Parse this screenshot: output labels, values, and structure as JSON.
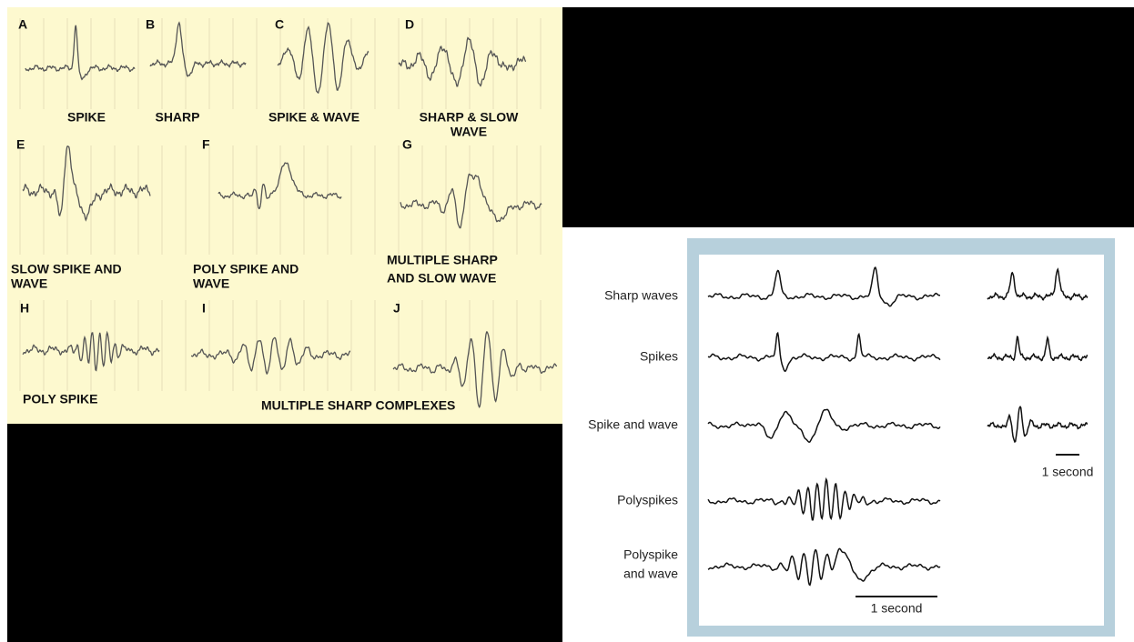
{
  "left_panel": {
    "panels": [
      {
        "letter": "A",
        "label_lines": [
          "SPIKE"
        ]
      },
      {
        "letter": "B",
        "label_lines": [
          "SHARP"
        ]
      },
      {
        "letter": "C",
        "label_lines": [
          "SPIKE & WAVE"
        ]
      },
      {
        "letter": "D",
        "label_lines": [
          "SHARP & SLOW",
          "WAVE"
        ]
      },
      {
        "letter": "E",
        "label_lines": [
          "SLOW SPIKE AND",
          "WAVE"
        ]
      },
      {
        "letter": "F",
        "label_lines": [
          "POLY SPIKE AND",
          "WAVE"
        ]
      },
      {
        "letter": "G",
        "label_lines": [
          "MULTIPLE  SHARP",
          "AND SLOW WAVE"
        ]
      },
      {
        "letter": "H",
        "label_lines": [
          "POLY SPIKE"
        ]
      },
      {
        "letter": "I",
        "label_lines": []
      },
      {
        "letter": "J",
        "label_lines": []
      }
    ],
    "shared_label": "MULTIPLE SHARP COMPLEXES"
  },
  "right_panel": {
    "rows": [
      {
        "label_lines": [
          "Sharp waves"
        ]
      },
      {
        "label_lines": [
          "Spikes"
        ]
      },
      {
        "label_lines": [
          "Spike and wave"
        ]
      },
      {
        "label_lines": [
          "Polyspikes"
        ]
      },
      {
        "label_lines": [
          "Polyspike",
          "and wave"
        ]
      }
    ],
    "scale_labels": [
      "1 second",
      "1 second"
    ]
  }
}
